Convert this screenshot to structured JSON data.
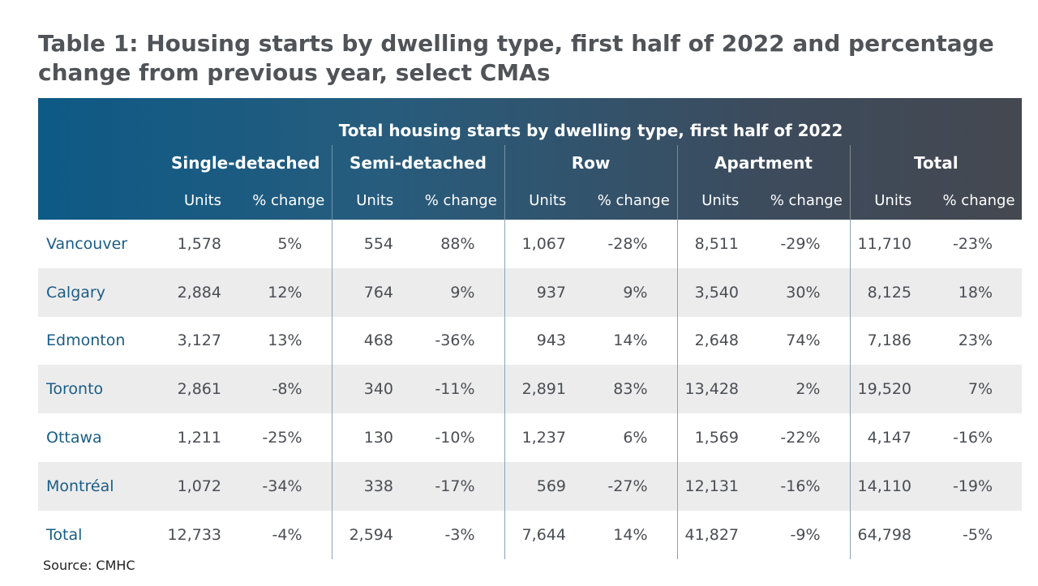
{
  "title": "Table 1: Housing starts by dwelling type, first half of 2022 and percentage change from previous year, select CMAs",
  "group_header": "Total housing starts by dwelling type, first half of 2022",
  "types": [
    "Single-detached",
    "Semi-detached",
    "Row",
    "Apartment",
    "Total"
  ],
  "sub_headers": {
    "units": "Units",
    "change": "% change"
  },
  "rows": [
    {
      "city": "Vancouver",
      "values": [
        "1,578",
        "5%",
        "554",
        "88%",
        "1,067",
        "-28%",
        "8,511",
        "-29%",
        "11,710",
        "-23%"
      ]
    },
    {
      "city": "Calgary",
      "values": [
        "2,884",
        "12%",
        "764",
        "9%",
        "937",
        "9%",
        "3,540",
        "30%",
        "8,125",
        "18%"
      ]
    },
    {
      "city": "Edmonton",
      "values": [
        "3,127",
        "13%",
        "468",
        "-36%",
        "943",
        "14%",
        "2,648",
        "74%",
        "7,186",
        "23%"
      ]
    },
    {
      "city": "Toronto",
      "values": [
        "2,861",
        "-8%",
        "340",
        "-11%",
        "2,891",
        "83%",
        "13,428",
        "2%",
        "19,520",
        "7%"
      ]
    },
    {
      "city": "Ottawa",
      "values": [
        "1,211",
        "-25%",
        "130",
        "-10%",
        "1,237",
        "6%",
        "1,569",
        "-22%",
        "4,147",
        "-16%"
      ]
    },
    {
      "city": "Montréal",
      "values": [
        "1,072",
        "-34%",
        "338",
        "-17%",
        "569",
        "-27%",
        "12,131",
        "-16%",
        "14,110",
        "-19%"
      ]
    },
    {
      "city": "Total",
      "values": [
        "12,733",
        "-4%",
        "2,594",
        "-3%",
        "7,644",
        "14%",
        "41,827",
        "-9%",
        "64,798",
        "-5%"
      ]
    }
  ],
  "source": "Source: CMHC",
  "colors": {
    "header_start": "#0d5a86",
    "header_end": "#444850",
    "city_text": "#1a5d85",
    "row_shade": "#ececed"
  }
}
